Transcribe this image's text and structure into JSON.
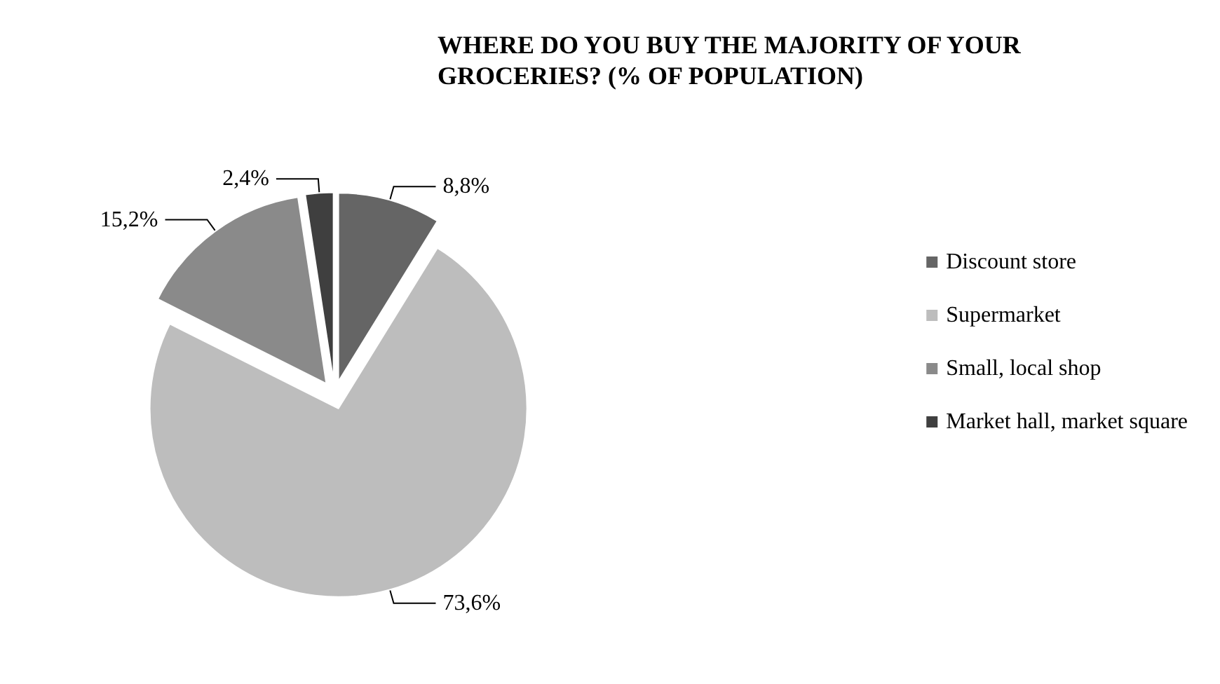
{
  "chart_data": {
    "type": "pie",
    "title": "WHERE DO YOU BUY THE MAJORITY OF YOUR GROCERIES? (% OF POPULATION)",
    "categories": [
      "Discount store",
      "Supermarket",
      "Small, local shop",
      "Market hall, market square"
    ],
    "values": [
      8.8,
      73.6,
      15.2,
      2.4
    ],
    "value_labels": [
      "8,8%",
      "73,6%",
      "15,2%",
      "2,4%"
    ],
    "colors": [
      "#656565",
      "#bdbdbd",
      "#8a8a8a",
      "#3f3f3f"
    ],
    "legend": "right"
  }
}
